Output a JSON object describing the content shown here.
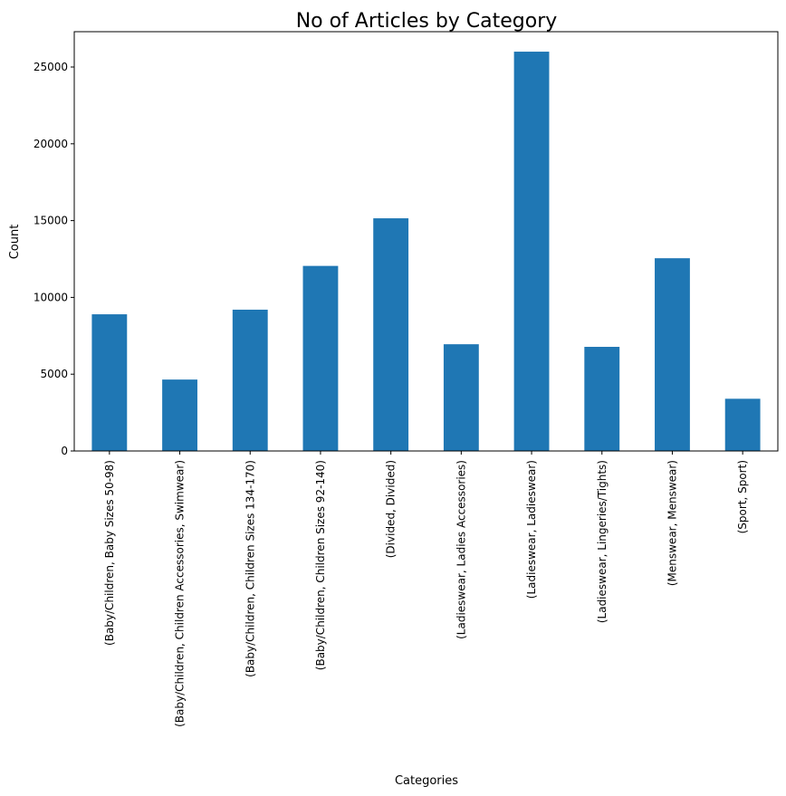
{
  "chart_data": {
    "type": "bar",
    "title": "No of Articles by Category",
    "xlabel": "Categories",
    "ylabel": "Count",
    "categories": [
      "(Baby/Children, Baby Sizes 50-98)",
      "(Baby/Children, Children Accessories, Swimwear)",
      "(Baby/Children, Children Sizes 134-170)",
      "(Baby/Children, Children Sizes 92-140)",
      "(Divided, Divided)",
      "(Ladieswear, Ladies Accessories)",
      "(Ladieswear, Ladieswear)",
      "(Ladieswear, Lingeries/Tights)",
      "(Menswear, Menswear)",
      "(Sport, Sport)"
    ],
    "values": [
      8900,
      4650,
      9200,
      12050,
      15150,
      6950,
      26000,
      6780,
      12550,
      3400
    ],
    "ylim": [
      0,
      27300
    ],
    "yticks": [
      0,
      5000,
      10000,
      15000,
      20000,
      25000
    ],
    "bar_color": "#1f77b4",
    "grid": false,
    "legend": false
  }
}
